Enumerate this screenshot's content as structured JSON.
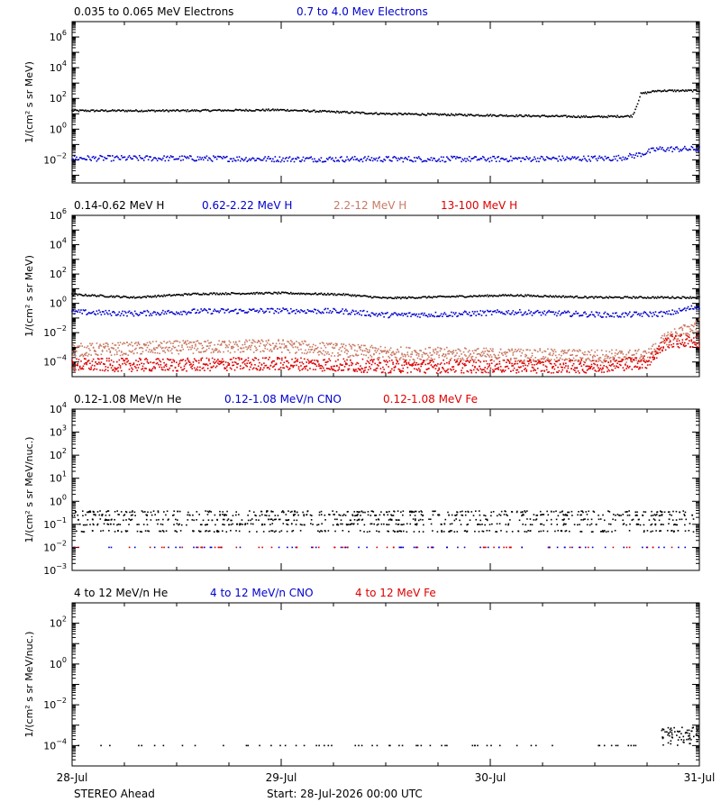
{
  "footer": {
    "spacecraft": "STEREO Ahead",
    "start_label": "Start: 28-Jul-2026 00:00 UTC"
  },
  "colors": {
    "black": "#000000",
    "blue": "#0000cc",
    "salmon": "#c87a64",
    "red": "#dd0000"
  },
  "chart_data": [
    {
      "type": "scatter",
      "panel": "electrons",
      "ylabel": "1/(cm² s sr MeV)",
      "ylim_exp": [
        -3.5,
        7
      ],
      "yscale": "log",
      "ytick_exponents": [
        -2,
        0,
        2,
        4,
        6
      ],
      "xlim_days": [
        0,
        3
      ],
      "series": [
        {
          "name": "0.035 to 0.065 MeV Electrons",
          "color": "#000000",
          "points_day_logflux": [
            [
              0,
              1.2
            ],
            [
              0.5,
              1.2
            ],
            [
              1.0,
              1.25
            ],
            [
              1.5,
              1.0
            ],
            [
              2.0,
              0.9
            ],
            [
              2.5,
              0.8
            ],
            [
              2.68,
              0.85
            ],
            [
              2.7,
              1.5
            ],
            [
              2.72,
              2.3
            ],
            [
              2.8,
              2.5
            ],
            [
              3.0,
              2.5
            ]
          ]
        },
        {
          "name": "0.7 to 4.0 Mev Electrons",
          "color": "#0000cc",
          "points_day_logflux": [
            [
              0,
              -1.9
            ],
            [
              0.5,
              -1.9
            ],
            [
              1.0,
              -1.95
            ],
            [
              1.5,
              -1.95
            ],
            [
              2.0,
              -1.95
            ],
            [
              2.6,
              -1.9
            ],
            [
              2.7,
              -1.7
            ],
            [
              2.8,
              -1.3
            ],
            [
              2.9,
              -1.3
            ],
            [
              3.0,
              -1.3
            ]
          ]
        }
      ]
    },
    {
      "type": "scatter",
      "panel": "protons",
      "ylabel": "1/(cm² s sr MeV)",
      "ylim_exp": [
        -5,
        6
      ],
      "yscale": "log",
      "ytick_exponents": [
        -4,
        -2,
        0,
        2,
        4,
        6
      ],
      "xlim_days": [
        0,
        3
      ],
      "series": [
        {
          "name": "0.14-0.62 MeV H",
          "color": "#000000",
          "points_day_logflux": [
            [
              0,
              0.6
            ],
            [
              0.3,
              0.4
            ],
            [
              0.6,
              0.65
            ],
            [
              1.0,
              0.7
            ],
            [
              1.3,
              0.6
            ],
            [
              1.5,
              0.35
            ],
            [
              1.8,
              0.45
            ],
            [
              2.1,
              0.55
            ],
            [
              2.5,
              0.4
            ],
            [
              3.0,
              0.4
            ]
          ]
        },
        {
          "name": "0.62-2.22 MeV H",
          "color": "#0000cc",
          "points_day_logflux": [
            [
              0,
              -0.6
            ],
            [
              0.3,
              -0.7
            ],
            [
              0.6,
              -0.55
            ],
            [
              1.0,
              -0.5
            ],
            [
              1.3,
              -0.55
            ],
            [
              1.5,
              -0.8
            ],
            [
              1.8,
              -0.75
            ],
            [
              2.1,
              -0.6
            ],
            [
              2.6,
              -0.8
            ],
            [
              2.85,
              -0.7
            ],
            [
              3.0,
              -0.2
            ]
          ]
        },
        {
          "name": "2.2-12 MeV H",
          "color": "#c87a64",
          "points_day_logflux": [
            [
              0,
              -3.2
            ],
            [
              0.5,
              -3.0
            ],
            [
              1.0,
              -2.9
            ],
            [
              1.5,
              -3.4
            ],
            [
              2.0,
              -3.5
            ],
            [
              2.5,
              -3.6
            ],
            [
              2.75,
              -3.6
            ],
            [
              2.85,
              -2.3
            ],
            [
              3.0,
              -1.5
            ]
          ]
        },
        {
          "name": "13-100 MeV H",
          "color": "#dd0000",
          "points_day_logflux": [
            [
              0,
              -4.2
            ],
            [
              0.5,
              -4.2
            ],
            [
              1.0,
              -4.1
            ],
            [
              1.5,
              -4.3
            ],
            [
              2.0,
              -4.3
            ],
            [
              2.5,
              -4.3
            ],
            [
              2.75,
              -4.0
            ],
            [
              2.85,
              -2.6
            ],
            [
              3.0,
              -2.6
            ]
          ]
        }
      ]
    },
    {
      "type": "scatter",
      "panel": "ions-low",
      "ylabel": "1/(cm² s sr MeV/nuc.)",
      "ylim_exp": [
        -3,
        4
      ],
      "yscale": "log",
      "ytick_exponents": [
        -3,
        -2,
        -1,
        0,
        1,
        2,
        3,
        4
      ],
      "xlim_days": [
        0,
        3
      ],
      "series": [
        {
          "name": "0.12-1.08 MeV/n He",
          "color": "#000000",
          "level_range_exp": [
            -1.3,
            -0.4
          ]
        },
        {
          "name": "0.12-1.08 MeV/n CNO",
          "color": "#0000cc",
          "level_exp": -2.0
        },
        {
          "name": "0.12-1.08 MeV Fe",
          "color": "#dd0000",
          "level_exp": -2.0
        }
      ]
    },
    {
      "type": "scatter",
      "panel": "ions-high",
      "ylabel": "1/(cm² s sr MeV/nuc.)",
      "ylim_exp": [
        -5,
        3
      ],
      "yscale": "log",
      "ytick_exponents": [
        -4,
        -2,
        0,
        2
      ],
      "xlim_days": [
        0,
        3
      ],
      "xtick_labels": [
        "28-Jul",
        "29-Jul",
        "30-Jul",
        "31-Jul"
      ],
      "series": [
        {
          "name": "4 to 12 MeV/n He",
          "color": "#000000",
          "level_exp": -4.0
        },
        {
          "name": "4 to 12 MeV/n CNO",
          "color": "#0000cc"
        },
        {
          "name": "4 to 12 MeV Fe",
          "color": "#dd0000"
        }
      ]
    }
  ]
}
